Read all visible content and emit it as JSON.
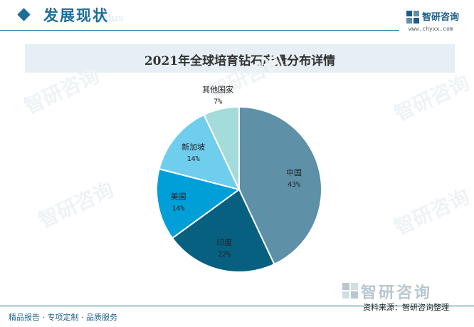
{
  "header": {
    "section_title": "发展现状",
    "section_ghost": "status",
    "brand_name": "智研咨询",
    "brand_url": "www.chyxx.com"
  },
  "chart_data": {
    "type": "pie",
    "title": "2021年全球培育钻石产量分布详情",
    "slices": [
      {
        "label": "中国",
        "value": 43,
        "display": "43%",
        "color": "#5e90a8"
      },
      {
        "label": "印度",
        "value": 22,
        "display": "22%",
        "color": "#07607f"
      },
      {
        "label": "美国",
        "value": 14,
        "display": "14%",
        "color": "#009fd8"
      },
      {
        "label": "新加坡",
        "value": 14,
        "display": "14%",
        "color": "#6fcdee"
      },
      {
        "label": "其他国家",
        "value": 7,
        "display": "7%",
        "color": "#a4dbdb"
      }
    ]
  },
  "watermark": {
    "text": "智研咨询"
  },
  "source": {
    "brand": "智研咨询",
    "text": "资料来源：智研咨询整理"
  },
  "footer": {
    "tagline": "精品报告 · 专项定制 · 品质服务"
  }
}
